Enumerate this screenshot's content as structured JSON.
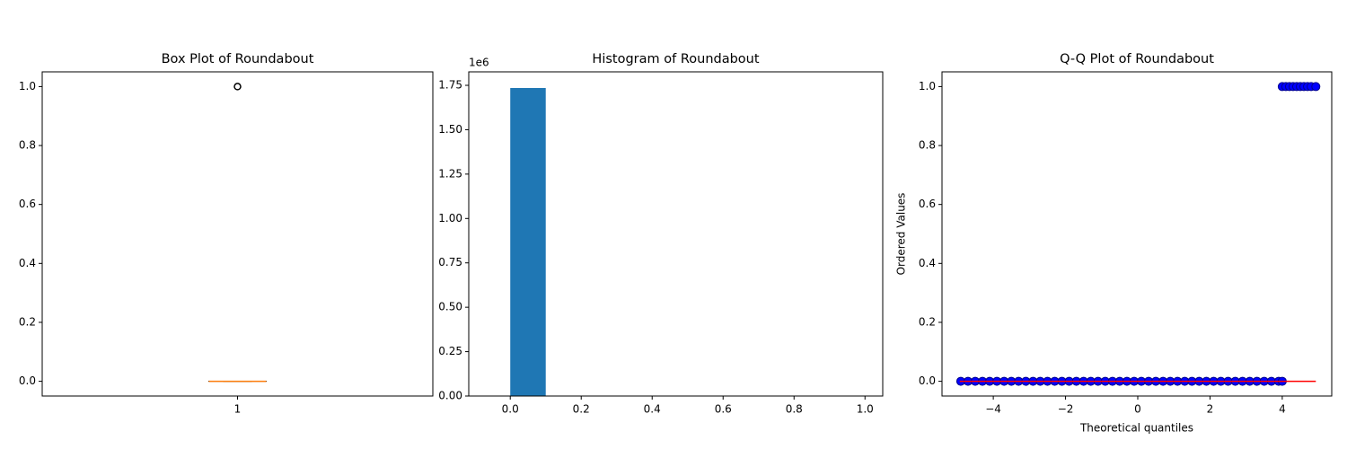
{
  "chart_data": [
    {
      "type": "box",
      "title": "Box Plot of Roundabout",
      "categories": [
        "1"
      ],
      "boxes": [
        {
          "whisker_low": 0,
          "q1": 0,
          "median": 0,
          "q3": 0,
          "whisker_high": 0,
          "outliers": [
            1
          ]
        }
      ],
      "color": "#000000",
      "median_color": "#ff7f0e",
      "ylim": [
        -0.05,
        1.05
      ],
      "yticks": [
        {
          "value": 0,
          "label": "0.0"
        },
        0.2,
        0.4,
        0.6,
        0.8,
        {
          "value": 1,
          "label": "1.0"
        }
      ]
    },
    {
      "type": "histogram",
      "title": "Histogram of Roundabout",
      "bins": [
        0,
        0.1,
        0.2,
        0.3,
        0.4,
        0.5,
        0.6,
        0.7,
        0.8,
        0.9,
        1.0
      ],
      "counts": [
        1735000,
        0,
        0,
        0,
        0,
        0,
        0,
        0,
        0,
        0
      ],
      "color": "#1f77b4",
      "xlim": [
        -0.117,
        1.05
      ],
      "xticks": [
        {
          "value": 0,
          "label": "0.0"
        },
        0.2,
        0.4,
        0.6,
        0.8,
        {
          "value": 1,
          "label": "1.0"
        }
      ],
      "ylim": [
        0,
        1826000
      ],
      "yticks": [
        {
          "value": 0,
          "label": "0.00"
        },
        {
          "value": 250000,
          "label": "0.25"
        },
        {
          "value": 500000,
          "label": "0.50"
        },
        {
          "value": 750000,
          "label": "0.75"
        },
        {
          "value": 1000000,
          "label": "1.00"
        },
        {
          "value": 1250000,
          "label": "1.25"
        },
        {
          "value": 1500000,
          "label": "1.50"
        },
        {
          "value": 1750000,
          "label": "1.75"
        }
      ],
      "y_offset_label": "1e6"
    },
    {
      "type": "scatter",
      "title": "Q-Q Plot of Roundabout",
      "x_label": "Theoretical quantiles",
      "y_label": "Ordered Values",
      "x": [
        -4.9,
        -4.7,
        -4.5,
        -4.3,
        -4.1,
        -3.9,
        -3.7,
        -3.5,
        -3.3,
        -3.1,
        -2.9,
        -2.7,
        -2.5,
        -2.3,
        -2.1,
        -1.9,
        -1.7,
        -1.5,
        -1.3,
        -1.1,
        -0.9,
        -0.7,
        -0.5,
        -0.3,
        -0.1,
        0.1,
        0.3,
        0.5,
        0.7,
        0.9,
        1.1,
        1.3,
        1.5,
        1.7,
        1.9,
        2.1,
        2.3,
        2.5,
        2.7,
        2.9,
        3.1,
        3.3,
        3.5,
        3.7,
        3.9,
        4.0,
        4.0,
        4.1,
        4.2,
        4.3,
        4.4,
        4.5,
        4.6,
        4.7,
        4.8,
        4.93
      ],
      "y": [
        0,
        0,
        0,
        0,
        0,
        0,
        0,
        0,
        0,
        0,
        0,
        0,
        0,
        0,
        0,
        0,
        0,
        0,
        0,
        0,
        0,
        0,
        0,
        0,
        0,
        0,
        0,
        0,
        0,
        0,
        0,
        0,
        0,
        0,
        0,
        0,
        0,
        0,
        0,
        0,
        0,
        0,
        0,
        0,
        0,
        0,
        1,
        1,
        1,
        1,
        1,
        1,
        1,
        1,
        1,
        1
      ],
      "color": "#0000ff",
      "edge_color": "#00008b",
      "fit_line": {
        "x": [
          -4.93,
          4.93
        ],
        "y": [
          0,
          0
        ],
        "color": "#ff0000"
      },
      "xlim": [
        -5.42,
        5.37
      ],
      "xticks": [
        {
          "value": -4,
          "label": "−4"
        },
        {
          "value": -2,
          "label": "−2"
        },
        0,
        2,
        4
      ],
      "ylim": [
        -0.05,
        1.05
      ],
      "yticks": [
        {
          "value": 0,
          "label": "0.0"
        },
        0.2,
        0.4,
        0.6,
        0.8,
        {
          "value": 1,
          "label": "1.0"
        }
      ]
    }
  ]
}
